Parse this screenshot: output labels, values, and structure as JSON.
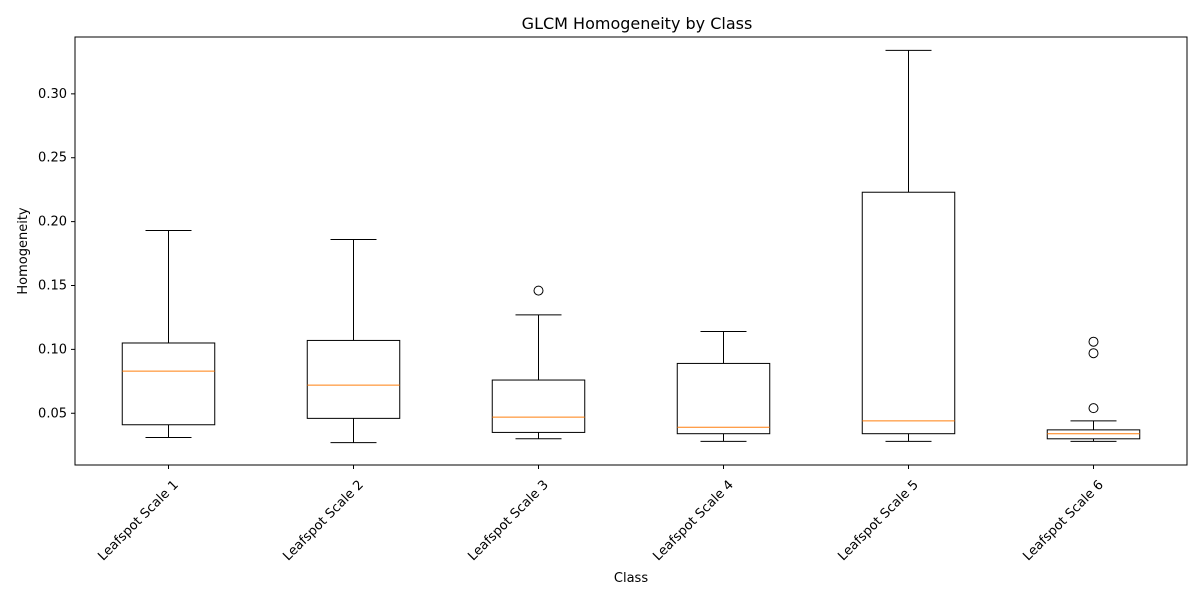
{
  "chart_data": {
    "type": "box",
    "title": "GLCM Homogeneity by Class",
    "xlabel": "Class",
    "ylabel": "Homogeneity",
    "ylim": [
      0.0095,
      0.3445
    ],
    "yticks": [
      "0.05",
      "0.10",
      "0.15",
      "0.20",
      "0.25",
      "0.30"
    ],
    "categories": [
      "Leafspot Scale 1",
      "Leafspot Scale 2",
      "Leafspot Scale 3",
      "Leafspot Scale 4",
      "Leafspot Scale 5",
      "Leafspot Scale 6"
    ],
    "boxes": [
      {
        "whisker_low": 0.031,
        "q1": 0.041,
        "median": 0.083,
        "q3": 0.105,
        "whisker_high": 0.193,
        "outliers": []
      },
      {
        "whisker_low": 0.027,
        "q1": 0.046,
        "median": 0.072,
        "q3": 0.107,
        "whisker_high": 0.186,
        "outliers": []
      },
      {
        "whisker_low": 0.03,
        "q1": 0.035,
        "median": 0.047,
        "q3": 0.076,
        "whisker_high": 0.127,
        "outliers": [
          0.146
        ]
      },
      {
        "whisker_low": 0.028,
        "q1": 0.034,
        "median": 0.039,
        "q3": 0.089,
        "whisker_high": 0.114,
        "outliers": []
      },
      {
        "whisker_low": 0.028,
        "q1": 0.034,
        "median": 0.044,
        "q3": 0.223,
        "whisker_high": 0.334,
        "outliers": []
      },
      {
        "whisker_low": 0.028,
        "q1": 0.03,
        "median": 0.034,
        "q3": 0.037,
        "whisker_high": 0.044,
        "outliers": [
          0.054,
          0.097,
          0.106
        ]
      }
    ],
    "colors": {
      "box": "#000000",
      "median": "#ff7f0e",
      "background": "#ffffff"
    },
    "grid": false,
    "legend": "none"
  }
}
